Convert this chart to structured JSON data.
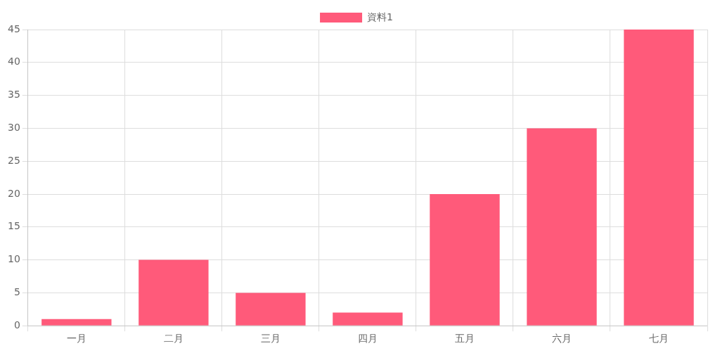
{
  "chart_data": {
    "type": "bar",
    "categories": [
      "一月",
      "二月",
      "三月",
      "四月",
      "五月",
      "六月",
      "七月"
    ],
    "series": [
      {
        "name": "資料1",
        "color": "#ff5a7a",
        "values": [
          1,
          10,
          5,
          2,
          20,
          30,
          45
        ]
      }
    ],
    "ylim": [
      0,
      45
    ],
    "yticks": [
      0,
      5,
      10,
      15,
      20,
      25,
      30,
      35,
      40,
      45
    ],
    "grid": true,
    "legend": "top"
  }
}
